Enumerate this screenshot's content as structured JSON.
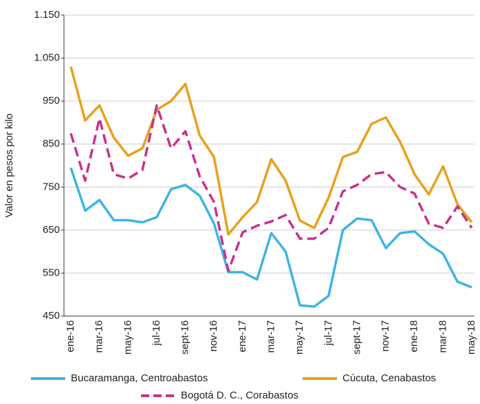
{
  "chart_data": {
    "type": "line",
    "y_label": "Valor en pesos por kilo",
    "categories": [
      "ene-16",
      null,
      "mar-16",
      null,
      "may-16",
      null,
      "jul-16",
      null,
      "sept-16",
      null,
      "nov-16",
      null,
      "ene-17",
      null,
      "mar-17",
      null,
      "may-17",
      null,
      "jul-17",
      null,
      "sept-17",
      null,
      "nov-17",
      null,
      "ene-18",
      null,
      "mar-18",
      null,
      "may-18"
    ],
    "series": [
      {
        "name": "Bucaramanga, Centroabastos",
        "color": "#3db4e5",
        "dashed": false,
        "values": [
          795,
          695,
          720,
          673,
          673,
          668,
          680,
          745,
          755,
          730,
          665,
          552,
          552,
          535,
          643,
          600,
          475,
          472,
          497,
          650,
          677,
          673,
          608,
          643,
          647,
          617,
          595,
          530,
          517
        ]
      },
      {
        "name": "Cúcuta, Cenabastos",
        "color": "#e8a01a",
        "dashed": false,
        "values": [
          1030,
          905,
          940,
          865,
          823,
          840,
          930,
          950,
          990,
          870,
          820,
          640,
          680,
          715,
          815,
          765,
          672,
          655,
          725,
          820,
          832,
          897,
          912,
          855,
          780,
          733,
          798,
          710,
          668
        ]
      },
      {
        "name": "Bogotá D. C., Corabastos",
        "color": "#c9308f",
        "dashed": true,
        "values": [
          875,
          765,
          910,
          780,
          770,
          790,
          940,
          840,
          880,
          775,
          715,
          555,
          645,
          660,
          670,
          685,
          630,
          630,
          655,
          740,
          755,
          780,
          785,
          750,
          735,
          665,
          655,
          705,
          655
        ]
      }
    ],
    "ylim": [
      450,
      1150
    ],
    "yticks": [
      450,
      550,
      650,
      750,
      850,
      950,
      {
        "value": 1050,
        "label": "1.050"
      },
      {
        "value": 1150,
        "label": "1.150"
      }
    ],
    "grid": true
  }
}
